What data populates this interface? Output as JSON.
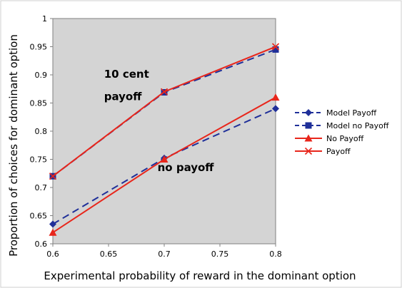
{
  "chart_data": {
    "type": "line",
    "x": [
      0.6,
      0.7,
      0.8
    ],
    "xlabel": "Experimental probability of reward in the dominant option",
    "ylabel": "Proportion of choices for dominant option",
    "xlim": [
      0.6,
      0.8
    ],
    "ylim": [
      0.6,
      1.0
    ],
    "xticks": [
      "0.6",
      "0.65",
      "0.7",
      "0.75",
      "0.8"
    ],
    "yticks": [
      "0.6",
      "0.65",
      "0.7",
      "0.75",
      "0.8",
      "0.85",
      "0.9",
      "0.95",
      "1"
    ],
    "grid": false,
    "legend_position": "right",
    "background": "#d4d4d4",
    "series": [
      {
        "name": "Model Payoff",
        "values": [
          0.635,
          0.752,
          0.84
        ],
        "color": "#1f2f99",
        "marker": "diamond",
        "dashed": true
      },
      {
        "name": "Model no Payoff",
        "values": [
          0.72,
          0.869,
          0.945
        ],
        "color": "#1f2f99",
        "marker": "square",
        "dashed": true
      },
      {
        "name": "No Payoff",
        "values": [
          0.62,
          0.75,
          0.86
        ],
        "color": "#e8261b",
        "marker": "triangle",
        "dashed": false
      },
      {
        "name": "Payoff",
        "values": [
          0.72,
          0.87,
          0.95
        ],
        "color": "#e8261b",
        "marker": "x",
        "dashed": false
      }
    ],
    "annotations": [
      {
        "text": "10 cent",
        "x": 0.646,
        "y": 0.895
      },
      {
        "text": "payoff",
        "x": 0.646,
        "y": 0.855
      },
      {
        "text": "no payoff",
        "x": 0.694,
        "y": 0.729
      }
    ]
  }
}
